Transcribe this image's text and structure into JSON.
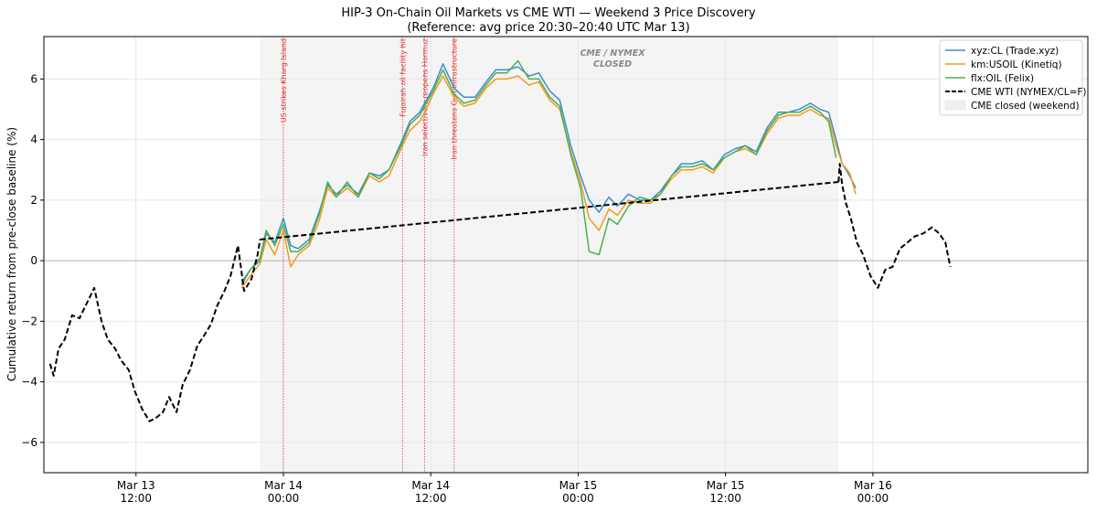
{
  "chart_data": {
    "type": "line",
    "title": "HIP-3 On-Chain Oil Markets vs CME WTI — Weekend 3 Price Discovery",
    "subtitle": "(Reference: avg price 20:30–20:40 UTC Mar 13)",
    "xlabel": "",
    "ylabel": "Cumulative return from pre-close baseline (%)",
    "x_unit": "hours since Mar 13 00:00 UTC",
    "xlim": [
      4.5,
      89.5
    ],
    "ylim": [
      -7,
      7.4
    ],
    "yticks": [
      -6,
      -4,
      -2,
      0,
      2,
      4,
      6
    ],
    "ytick_labels": [
      "−6",
      "−4",
      "−2",
      "0",
      "2",
      "4",
      "6"
    ],
    "xticks": [
      {
        "x": 12,
        "label": "Mar 13\n12:00"
      },
      {
        "x": 24,
        "label": "Mar 14\n00:00"
      },
      {
        "x": 36,
        "label": "Mar 14\n12:00"
      },
      {
        "x": 48,
        "label": "Mar 15\n00:00"
      },
      {
        "x": 60,
        "label": "Mar 15\n12:00"
      },
      {
        "x": 72,
        "label": "Mar 16\n00:00"
      }
    ],
    "grid": true,
    "legend_position": "top-right",
    "closed_region": {
      "x0": 22.1,
      "x1": 69.2,
      "label": "CME / NYMEX\nCLOSED",
      "legend": "CME closed (weekend)"
    },
    "events": [
      {
        "x": 24.0,
        "label": "US strikes Kharg Island"
      },
      {
        "x": 33.7,
        "label": "Fujairah oil facility hit"
      },
      {
        "x": 35.5,
        "label": "Iran selectively reopens Hormuz"
      },
      {
        "x": 37.9,
        "label": "Iran threatens Gulf infrastructure"
      }
    ],
    "series": [
      {
        "name": "xyz:CL (Trade.xyz)",
        "color": "#3b8fd0",
        "style": "solid",
        "x": [
          20.6,
          21.3,
          22.1,
          22.6,
          23.3,
          24.0,
          24.6,
          25.2,
          26.1,
          26.9,
          27.6,
          28.3,
          29.2,
          30.1,
          31.0,
          31.8,
          32.6,
          33.7,
          34.3,
          35.1,
          35.5,
          36.2,
          37.0,
          37.9,
          38.7,
          39.6,
          40.5,
          41.3,
          42.2,
          43.1,
          44.0,
          44.8,
          45.7,
          46.5,
          47.4,
          48.2,
          48.9,
          49.7,
          50.5,
          51.2,
          52.1,
          53.0,
          53.9,
          54.7,
          55.6,
          56.4,
          57.3,
          58.1,
          59.0,
          59.9,
          60.8,
          61.6,
          62.5,
          63.4,
          64.3,
          65.1,
          66.0,
          66.9,
          67.7,
          68.4,
          69.0,
          69.5,
          70.1,
          70.6
        ],
        "y": [
          -0.8,
          -0.3,
          0.0,
          0.9,
          0.6,
          1.4,
          0.5,
          0.4,
          0.7,
          1.6,
          2.5,
          2.2,
          2.5,
          2.2,
          2.9,
          2.8,
          3.0,
          4.0,
          4.6,
          4.9,
          5.2,
          5.7,
          6.5,
          5.7,
          5.4,
          5.4,
          5.9,
          6.3,
          6.3,
          6.4,
          6.1,
          6.2,
          5.6,
          5.3,
          3.8,
          2.8,
          2.0,
          1.6,
          2.1,
          1.8,
          2.2,
          2.0,
          2.0,
          2.3,
          2.8,
          3.2,
          3.2,
          3.3,
          3.0,
          3.5,
          3.7,
          3.8,
          3.6,
          4.4,
          4.9,
          4.9,
          5.0,
          5.2,
          5.0,
          4.9,
          4.0,
          3.2,
          2.8,
          2.4
        ]
      },
      {
        "name": "km:USOIL (Kinetiq)",
        "color": "#f79a1c",
        "style": "solid",
        "x": [
          20.6,
          21.3,
          22.1,
          22.6,
          23.3,
          24.0,
          24.6,
          25.2,
          26.1,
          26.9,
          27.6,
          28.3,
          29.2,
          30.1,
          31.0,
          31.8,
          32.6,
          33.7,
          34.3,
          35.1,
          35.5,
          36.2,
          37.0,
          37.9,
          38.7,
          39.6,
          40.5,
          41.3,
          42.2,
          43.1,
          44.0,
          44.8,
          45.7,
          46.5,
          47.4,
          48.2,
          48.9,
          49.7,
          50.5,
          51.2,
          52.1,
          53.0,
          53.9,
          54.7,
          55.6,
          56.4,
          57.3,
          58.1,
          59.0,
          59.9,
          60.8,
          61.6,
          62.5,
          63.4,
          64.3,
          65.1,
          66.0,
          66.9,
          67.7,
          68.4,
          69.0,
          69.5,
          70.1,
          70.6
        ],
        "y": [
          -0.9,
          -0.5,
          -0.1,
          0.7,
          0.2,
          1.0,
          -0.2,
          0.2,
          0.5,
          1.3,
          2.4,
          2.1,
          2.4,
          2.1,
          2.8,
          2.6,
          2.8,
          3.8,
          4.3,
          4.6,
          4.9,
          5.5,
          6.1,
          5.4,
          5.1,
          5.2,
          5.7,
          6.0,
          6.0,
          6.1,
          5.8,
          5.9,
          5.3,
          5.0,
          3.6,
          2.6,
          1.4,
          1.0,
          1.7,
          1.5,
          2.0,
          1.9,
          1.9,
          2.2,
          2.7,
          3.0,
          3.0,
          3.1,
          2.9,
          3.4,
          3.6,
          3.7,
          3.5,
          4.2,
          4.7,
          4.8,
          4.8,
          5.0,
          4.8,
          4.7,
          3.8,
          3.2,
          2.9,
          2.2
        ]
      },
      {
        "name": "flx:OIL (Felix)",
        "color": "#4caf50",
        "style": "solid",
        "x": [
          20.6,
          21.3,
          22.1,
          22.6,
          23.3,
          24.0,
          24.6,
          25.2,
          26.1,
          26.9,
          27.6,
          28.3,
          29.2,
          30.1,
          31.0,
          31.8,
          32.6,
          33.7,
          34.3,
          35.1,
          35.5,
          36.2,
          37.0,
          37.9,
          38.7,
          39.6,
          40.5,
          41.3,
          42.2,
          43.1,
          44.0,
          44.8,
          45.7,
          46.5,
          47.4,
          48.2,
          48.9,
          49.7,
          50.5,
          51.2,
          52.1,
          53.0,
          53.9,
          54.7,
          55.6,
          56.4,
          57.3,
          58.1,
          59.0,
          59.9,
          60.8,
          61.6,
          62.5,
          63.4,
          64.3,
          65.1,
          66.0,
          66.9,
          67.7,
          68.4,
          69.0
        ],
        "y": [
          -0.7,
          -0.3,
          0.1,
          1.0,
          0.5,
          1.2,
          0.3,
          0.3,
          0.6,
          1.5,
          2.6,
          2.1,
          2.6,
          2.1,
          2.9,
          2.7,
          3.0,
          3.9,
          4.5,
          4.8,
          5.1,
          5.6,
          6.3,
          5.5,
          5.2,
          5.3,
          5.8,
          6.2,
          6.2,
          6.6,
          6.0,
          6.0,
          5.4,
          5.1,
          3.5,
          2.4,
          0.3,
          0.2,
          1.4,
          1.2,
          1.8,
          2.1,
          2.0,
          2.2,
          2.8,
          3.1,
          3.1,
          3.2,
          3.0,
          3.4,
          3.6,
          3.8,
          3.5,
          4.3,
          4.8,
          4.9,
          4.9,
          5.1,
          4.9,
          4.6,
          3.4
        ]
      },
      {
        "name": "CME WTI (NYMEX/CL=F)",
        "color": "#000000",
        "style": "dashed",
        "x": [
          5.0,
          5.3,
          5.7,
          6.2,
          6.8,
          7.4,
          8.0,
          8.6,
          9.2,
          9.7,
          10.3,
          10.8,
          11.4,
          11.9,
          12.5,
          13.1,
          13.6,
          14.2,
          14.7,
          15.3,
          15.8,
          16.4,
          17.0,
          17.5,
          18.1,
          18.6,
          19.2,
          19.7,
          20.3,
          20.8,
          21.4,
          21.9,
          22.1,
          69.2,
          69.3,
          69.5,
          69.8,
          70.2,
          70.7,
          71.2,
          71.8,
          72.4,
          73.0,
          73.6,
          74.2,
          74.8,
          75.4,
          76.1,
          76.8,
          77.4,
          77.9,
          78.3
        ],
        "y": [
          -3.4,
          -3.8,
          -2.9,
          -2.6,
          -1.8,
          -1.9,
          -1.4,
          -0.9,
          -2.0,
          -2.6,
          -2.9,
          -3.3,
          -3.6,
          -4.3,
          -4.9,
          -5.3,
          -5.2,
          -5.0,
          -4.5,
          -5.0,
          -4.1,
          -3.6,
          -2.8,
          -2.5,
          -2.1,
          -1.5,
          -1.0,
          -0.5,
          0.5,
          -1.0,
          -0.6,
          0.2,
          0.7,
          2.6,
          3.2,
          2.5,
          1.9,
          1.4,
          0.6,
          0.2,
          -0.5,
          -0.9,
          -0.3,
          -0.2,
          0.4,
          0.6,
          0.8,
          0.9,
          1.1,
          0.9,
          0.6,
          -0.2
        ]
      }
    ]
  }
}
